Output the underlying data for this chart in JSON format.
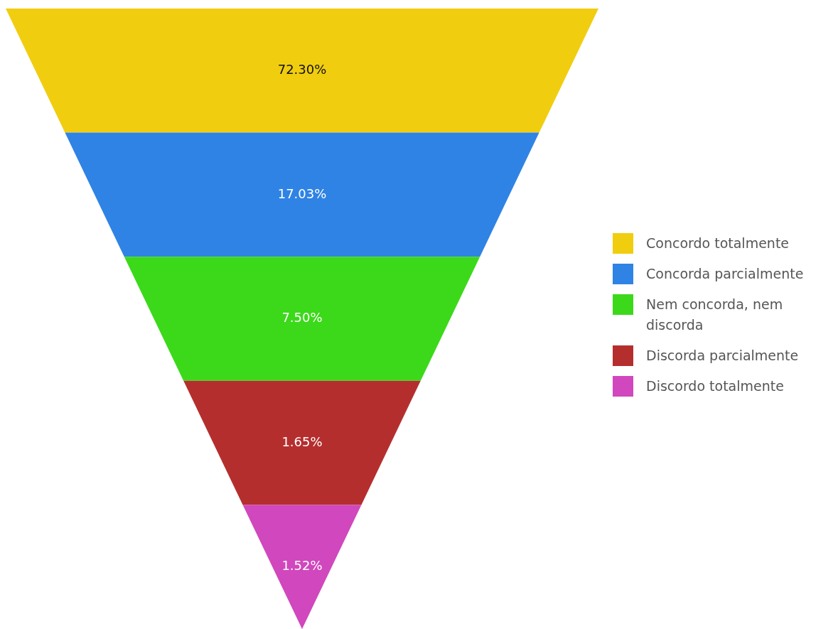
{
  "chart_data": {
    "type": "other",
    "categories": [
      "Concordo totalmente",
      "Concorda parcialmente",
      "Nem concorda, nem discorda",
      "Discorda parcialmente",
      "Discordo totalmente"
    ],
    "values": [
      72.3,
      17.03,
      7.5,
      1.65,
      1.52
    ],
    "value_labels": [
      "72.30%",
      "17.03%",
      "7.50%",
      "1.65%",
      "1.52%"
    ],
    "colors": [
      "#f1cd0f",
      "#2f83e4",
      "#3bd91a",
      "#b52e2e",
      "#d147bd"
    ]
  }
}
